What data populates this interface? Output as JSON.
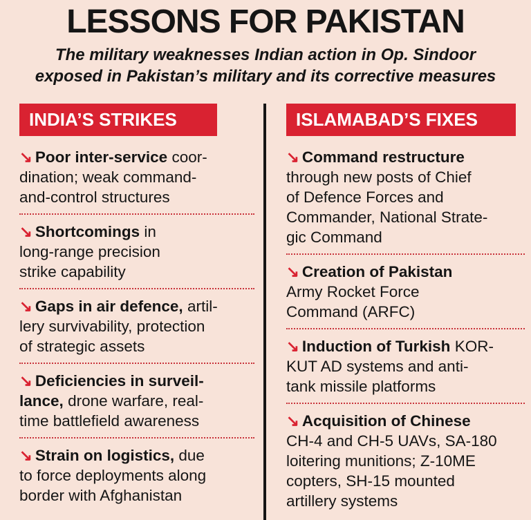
{
  "header": {
    "title": "LESSONS FOR PAKISTAN",
    "subtitle": [
      "The military weaknesses Indian action in Op. Sindoor",
      "exposed in Pakistan’s military and its corrective measures"
    ]
  },
  "columns": [
    {
      "heading": "INDIA’S STRIKES",
      "items": [
        {
          "lines": [
            {
              "bold": "Poor inter-service",
              "text": "coor-"
            },
            {
              "text": "dination; weak command-"
            },
            {
              "text": "and-control structures"
            }
          ]
        },
        {
          "lines": [
            {
              "bold": "Shortcomings",
              "text": "in"
            },
            {
              "text": "long-range precision"
            },
            {
              "text": "strike capability"
            }
          ]
        },
        {
          "lines": [
            {
              "bold": "Gaps in air defence,",
              "text": "artil-"
            },
            {
              "text": "lery survivability, protection"
            },
            {
              "text": "of strategic assets"
            }
          ]
        },
        {
          "lines": [
            {
              "bold": "Deficiencies in surveil-"
            },
            {
              "bold": "lance,",
              "text": "drone warfare, real-"
            },
            {
              "text": "time battlefield awareness"
            }
          ]
        },
        {
          "lines": [
            {
              "bold": "Strain on logistics,",
              "text": "due"
            },
            {
              "text": "to force deployments along"
            },
            {
              "text": "border with Afghanistan"
            }
          ]
        }
      ]
    },
    {
      "heading": "ISLAMABAD’S FIXES",
      "items": [
        {
          "lines": [
            {
              "bold": "Command restructure"
            },
            {
              "text": "through new posts of Chief"
            },
            {
              "text": "of Defence Forces and"
            },
            {
              "text": "Commander, National Strate-"
            },
            {
              "text": "gic Command"
            }
          ]
        },
        {
          "lines": [
            {
              "bold": "Creation of Pakistan"
            },
            {
              "text": "Army Rocket Force"
            },
            {
              "text": "Command (ARFC)"
            }
          ]
        },
        {
          "lines": [
            {
              "bold": "Induction of Turkish",
              "text": "KOR-"
            },
            {
              "text": "KUT AD systems and anti-"
            },
            {
              "text": "tank missile platforms"
            }
          ]
        },
        {
          "lines": [
            {
              "bold": "Acquisition of Chinese"
            },
            {
              "text": "CH-4 and CH-5 UAVs, SA-180"
            },
            {
              "text": "loitering munitions; Z-10ME"
            },
            {
              "text": "copters, SH-15 mounted"
            },
            {
              "text": "artillery systems"
            }
          ]
        }
      ]
    }
  ]
}
